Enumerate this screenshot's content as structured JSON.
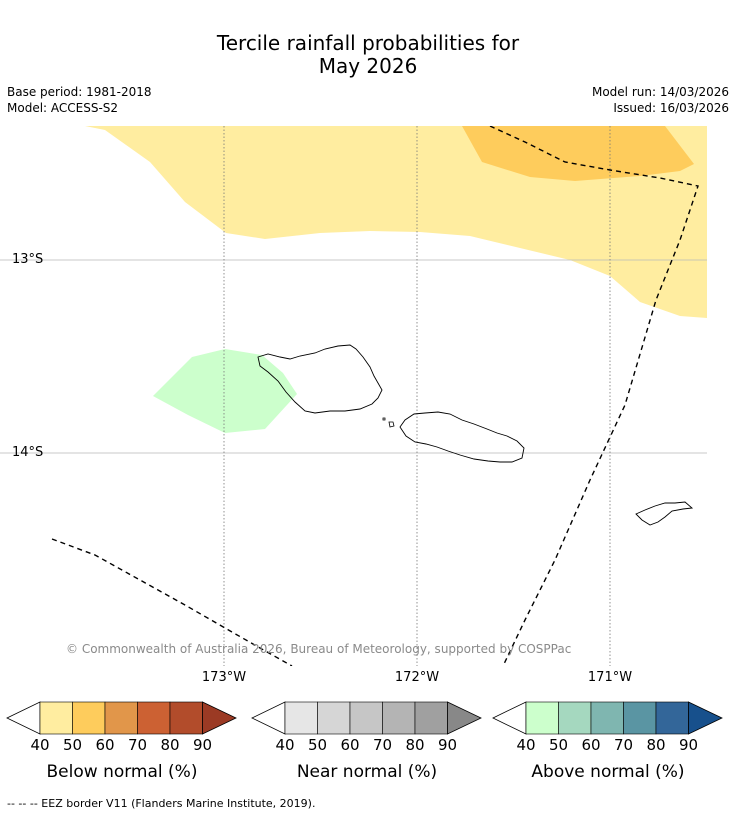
{
  "title_line1": "Tercile rainfall probabilities for",
  "title_line2": "May 2026",
  "base_period": "Base period: 1981-2018",
  "model": "Model: ACCESS-S2",
  "model_run": "Model run: 14/03/2026",
  "issued": "Issued: 16/03/2026",
  "lat_labels": [
    "13°S",
    "14°S"
  ],
  "lon_labels": [
    "173°W",
    "172°W",
    "171°W"
  ],
  "copyright": "© Commonwealth of Australia 2026, Bureau of Meteorology, supported by COSPPac",
  "colorbars": [
    {
      "label": "Below normal (%)",
      "ticks": [
        "40",
        "50",
        "60",
        "70",
        "80",
        "90"
      ],
      "colors": [
        "#ffeda0",
        "#fecc5c",
        "#e1964a",
        "#cc6133",
        "#b24c2b",
        "#9b3a24"
      ]
    },
    {
      "label": "Near normal (%)",
      "ticks": [
        "40",
        "50",
        "60",
        "70",
        "80",
        "90"
      ],
      "colors": [
        "#e6e6e6",
        "#d6d6d6",
        "#c6c6c6",
        "#b4b4b4",
        "#a0a0a0",
        "#888888"
      ]
    },
    {
      "label": "Above normal (%)",
      "ticks": [
        "40",
        "50",
        "60",
        "70",
        "80",
        "90"
      ],
      "colors": [
        "#ccffcc",
        "#a5d8bf",
        "#7fb6b0",
        "#5a95a3",
        "#336699",
        "#17508c"
      ]
    }
  ],
  "colors": {
    "below_40_50": "#ffeda0",
    "below_50_60": "#fecc5c",
    "above_40_50": "#ccffcc",
    "copyright_text": "#8a8a8a"
  },
  "footer": "--  --  -- EEZ border V11 (Flanders Marine Institute, 2019)."
}
